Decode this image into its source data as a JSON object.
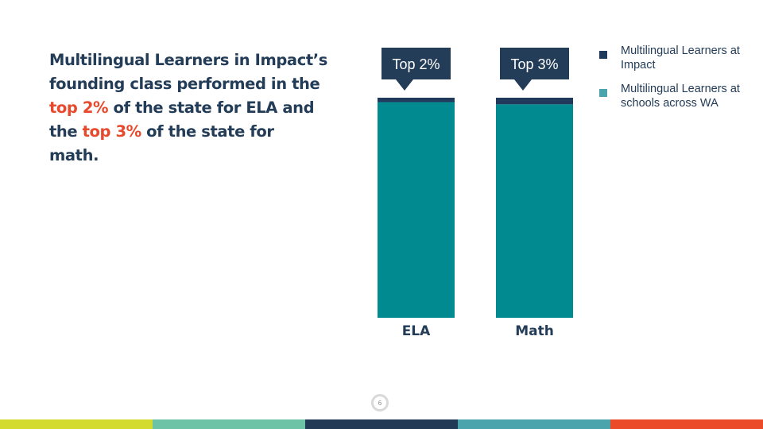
{
  "headline": {
    "part1": "Multilingual Learners in Impact’s founding class performed in the ",
    "highlight1": "top 2%",
    "part2": " of the state for ELA and the ",
    "highlight2": "top 3%",
    "part3": " of the state for math."
  },
  "chart_data": {
    "type": "bar",
    "stacked": true,
    "categories": [
      "ELA",
      "Math"
    ],
    "series": [
      {
        "name": "Multilingual Learners at Impact",
        "values": [
          2,
          3
        ],
        "color": "#1f3a5a"
      },
      {
        "name": "Multilingual Learners at schools across WA",
        "values": [
          98,
          97
        ],
        "color": "#028a91"
      }
    ],
    "callouts": [
      "Top 2%",
      "Top 3%"
    ],
    "ylim": [
      0,
      100
    ],
    "grid": false,
    "legend_position": "right",
    "title": "",
    "xlabel": "",
    "ylabel": ""
  },
  "page_number": "6",
  "colors": {
    "accent": "#e8482b",
    "navy": "#233c57",
    "teal": "#028a91",
    "footer": [
      "#d3dc2e",
      "#6cc3a6",
      "#223a55",
      "#4ba3ac",
      "#ec4b29"
    ]
  }
}
